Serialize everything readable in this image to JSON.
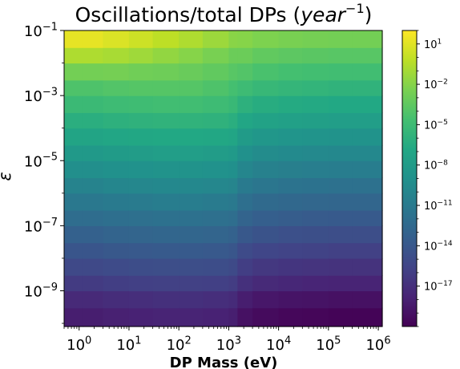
{
  "chart_data": {
    "type": "heatmap",
    "title": {
      "prefix": "Oscillations/total DPs (",
      "var": "year",
      "exp": "−1",
      "suffix": ")"
    },
    "xlabel": "DP Mass (eV)",
    "ylabel": "ε",
    "x_scale": "log",
    "y_scale": "log",
    "xlim": [
      0.5,
      1200000
    ],
    "ylim": [
      8e-11,
      0.1
    ],
    "x_ticks": [
      {
        "value": 1,
        "base": "10",
        "exp": "0"
      },
      {
        "value": 10,
        "base": "10",
        "exp": "1"
      },
      {
        "value": 100,
        "base": "10",
        "exp": "2"
      },
      {
        "value": 1000,
        "base": "10",
        "exp": "3"
      },
      {
        "value": 10000,
        "base": "10",
        "exp": "4"
      },
      {
        "value": 100000,
        "base": "10",
        "exp": "5"
      },
      {
        "value": 1000000,
        "base": "10",
        "exp": "6"
      }
    ],
    "y_ticks": [
      {
        "value": 0.1,
        "base": "10",
        "exp": "−1"
      },
      {
        "value": 0.001,
        "base": "10",
        "exp": "−3"
      },
      {
        "value": 1e-05,
        "base": "10",
        "exp": "−5"
      },
      {
        "value": 1e-07,
        "base": "10",
        "exp": "−7"
      },
      {
        "value": 1e-09,
        "base": "10",
        "exp": "−9"
      }
    ],
    "colorbar": {
      "scale": "log",
      "colormap": "viridis",
      "range": [
        1e-20,
        100.0
      ],
      "ticks": [
        {
          "value": 10,
          "base": "10",
          "exp": "1"
        },
        {
          "value": 0.01,
          "base": "10",
          "exp": "−2"
        },
        {
          "value": 1e-05,
          "base": "10",
          "exp": "−5"
        },
        {
          "value": 1e-08,
          "base": "10",
          "exp": "−8"
        },
        {
          "value": 1e-11,
          "base": "10",
          "exp": "−11"
        },
        {
          "value": 1e-14,
          "base": "10",
          "exp": "−14"
        },
        {
          "value": 1e-17,
          "base": "10",
          "exp": "−17"
        }
      ]
    },
    "grid": {
      "mass_bins": [
        0.5,
        1.2,
        3,
        10,
        30,
        100,
        300,
        1000,
        1500,
        3000,
        10000,
        30000,
        100000,
        300000,
        1200000
      ],
      "epsilon_bins": [
        8e-11,
        3e-10,
        1e-09,
        3e-09,
        1e-08,
        3e-08,
        1e-07,
        3e-07,
        1e-06,
        3e-06,
        1e-05,
        3e-05,
        0.0001,
        0.0003,
        0.001,
        0.003,
        0.01,
        0.03,
        0.1
      ],
      "log10_values_by_mass_column": [
        [
          -18.2,
          -17.4,
          -16.2,
          -15.2,
          -14.2,
          -13.2,
          -12.2,
          -11.2,
          -10.2,
          -9.2,
          -8.2,
          -7.2,
          -6.2,
          -5.2,
          -4.2,
          -2.7,
          -0.7,
          1.2
        ],
        [
          -18.2,
          -17.4,
          -16.2,
          -15.2,
          -14.2,
          -13.2,
          -12.2,
          -11.2,
          -10.2,
          -9.2,
          -8.2,
          -7.2,
          -6.2,
          -5.2,
          -4.2,
          -2.7,
          -0.7,
          1.2
        ],
        [
          -18.0,
          -17.2,
          -16.0,
          -15.0,
          -14.0,
          -13.0,
          -12.0,
          -11.0,
          -10.0,
          -9.0,
          -8.0,
          -7.0,
          -6.0,
          -5.0,
          -4.0,
          -2.6,
          -0.9,
          0.8
        ],
        [
          -17.9,
          -17.1,
          -15.9,
          -14.9,
          -13.9,
          -12.9,
          -11.9,
          -10.9,
          -9.9,
          -8.9,
          -7.9,
          -6.9,
          -5.9,
          -4.9,
          -3.9,
          -2.8,
          -1.2,
          0.3
        ],
        [
          -17.8,
          -17.0,
          -15.8,
          -14.8,
          -13.8,
          -12.8,
          -11.8,
          -10.8,
          -9.8,
          -8.8,
          -7.8,
          -6.8,
          -5.8,
          -4.8,
          -3.9,
          -2.9,
          -1.6,
          -0.2
        ],
        [
          -17.8,
          -17.0,
          -15.8,
          -14.8,
          -13.8,
          -12.8,
          -11.8,
          -10.8,
          -9.8,
          -8.8,
          -7.8,
          -6.8,
          -5.8,
          -4.8,
          -3.9,
          -3.1,
          -2.0,
          -0.7
        ],
        [
          -17.9,
          -17.1,
          -15.9,
          -14.9,
          -13.9,
          -12.9,
          -11.9,
          -10.9,
          -9.9,
          -8.9,
          -7.9,
          -6.9,
          -5.9,
          -5.0,
          -4.2,
          -3.4,
          -2.5,
          -1.3
        ],
        [
          -18.1,
          -17.3,
          -16.1,
          -15.1,
          -14.1,
          -13.1,
          -12.1,
          -11.1,
          -10.1,
          -9.1,
          -8.1,
          -7.1,
          -6.2,
          -5.3,
          -4.6,
          -3.8,
          -3.0,
          -1.9
        ],
        [
          -19.0,
          -18.2,
          -17.0,
          -16.0,
          -15.0,
          -14.0,
          -13.0,
          -12.0,
          -11.0,
          -10.0,
          -9.0,
          -8.0,
          -7.0,
          -6.0,
          -5.0,
          -4.0,
          -3.0,
          -2.0
        ],
        [
          -19.4,
          -18.6,
          -17.4,
          -16.4,
          -15.4,
          -14.4,
          -13.4,
          -12.4,
          -11.4,
          -10.4,
          -9.4,
          -8.4,
          -7.4,
          -6.4,
          -5.4,
          -4.4,
          -3.4,
          -2.3
        ],
        [
          -19.6,
          -18.8,
          -17.6,
          -16.6,
          -15.6,
          -14.6,
          -13.6,
          -12.6,
          -11.6,
          -10.6,
          -9.6,
          -8.6,
          -7.6,
          -6.6,
          -5.6,
          -4.6,
          -3.6,
          -2.5
        ],
        [
          -19.7,
          -18.9,
          -17.7,
          -16.7,
          -15.7,
          -14.7,
          -13.7,
          -12.7,
          -11.7,
          -10.7,
          -9.7,
          -8.7,
          -7.7,
          -6.7,
          -5.7,
          -4.7,
          -3.7,
          -2.6
        ],
        [
          -19.8,
          -19.0,
          -17.8,
          -16.8,
          -15.8,
          -14.8,
          -13.8,
          -12.8,
          -11.8,
          -10.8,
          -9.8,
          -8.8,
          -7.8,
          -6.8,
          -5.8,
          -4.8,
          -3.8,
          -2.7
        ],
        [
          -19.8,
          -19.0,
          -17.8,
          -16.8,
          -15.8,
          -14.8,
          -13.8,
          -12.8,
          -11.8,
          -10.8,
          -9.8,
          -8.8,
          -7.8,
          -6.8,
          -5.8,
          -4.8,
          -3.8,
          -2.7
        ]
      ]
    }
  }
}
